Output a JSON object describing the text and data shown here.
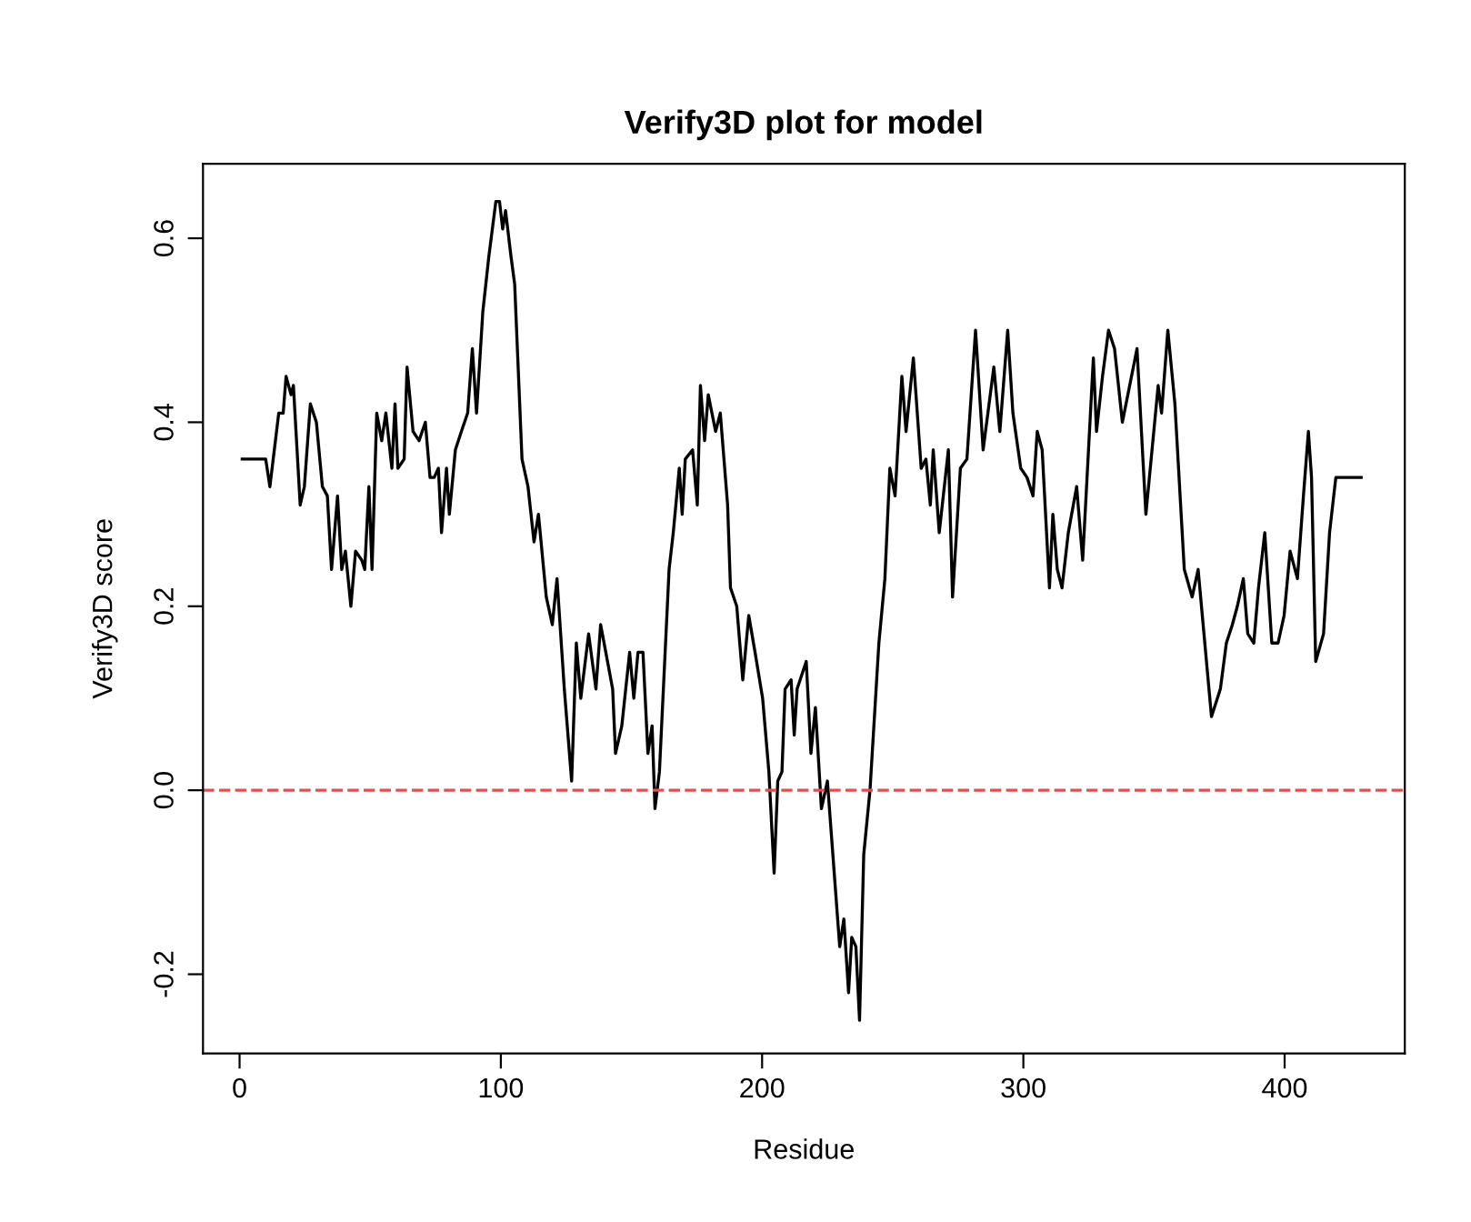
{
  "chart_data": {
    "type": "line",
    "title": "Verify3D plot for model",
    "xlabel": "Residue",
    "ylabel": "Verify3D score",
    "xlim": [
      -14,
      446
    ],
    "xticks": [
      0,
      100,
      200,
      300,
      400
    ],
    "ylim": [
      -0.286,
      0.681
    ],
    "yticks": [
      -0.2,
      {
        "value": 0,
        "label": "0.0"
      },
      0.2,
      0.4,
      0.6
    ],
    "grid": false,
    "legend": false,
    "marker": "none",
    "line_style": "solid",
    "ref_lines": [
      {
        "axis": "y",
        "value": 0,
        "color": "#e05050",
        "line_style": "dashed"
      }
    ],
    "series": [
      {
        "color": "#000000",
        "x": [
          1,
          10,
          11.6,
          15,
          16.7,
          17.8,
          19.7,
          20.6,
          22,
          23.2,
          24.8,
          27.1,
          29.4,
          31.7,
          33.6,
          35.2,
          37.5,
          39.1,
          40.5,
          42.6,
          44.4,
          46.8,
          47.9,
          49.5,
          50.7,
          52.5,
          54.4,
          56,
          58.3,
          59.5,
          60.6,
          63,
          64.1,
          66.4,
          68.7,
          71.1,
          72.9,
          74.5,
          76.1,
          77.3,
          79.2,
          80.3,
          82.6,
          84.9,
          87.3,
          89.1,
          90.7,
          93.1,
          95.4,
          98.1,
          99.5,
          100.7,
          101.8,
          103.9,
          105.3,
          108.1,
          110.4,
          112.7,
          114.4,
          117.4,
          119.7,
          121.5,
          124.3,
          127.1,
          128.9,
          130.6,
          133.6,
          136.4,
          138.2,
          142.8,
          143.9,
          146.3,
          149.3,
          150.9,
          152.5,
          154.4,
          156.3,
          157.9,
          159,
          160.7,
          164.4,
          166,
          168.3,
          169.4,
          170.6,
          173.4,
          175.2,
          176.4,
          178,
          179.4,
          182.2,
          184,
          186.8,
          187.9,
          190.3,
          192.6,
          194.9,
          197.3,
          200.2,
          202.6,
          204.6,
          206,
          207.6,
          208.8,
          211.1,
          212.3,
          213.4,
          216.9,
          218.7,
          220.4,
          222.7,
          225,
          229.7,
          231.3,
          233.1,
          234.3,
          235.9,
          237.3,
          238.9,
          241.3,
          244.7,
          247,
          248.9,
          250.9,
          253.5,
          255.1,
          257.9,
          260.9,
          262.7,
          264.4,
          265.5,
          267.8,
          271.3,
          272.9,
          275.9,
          278.4,
          281.7,
          284.6,
          288.7,
          291,
          294,
          296,
          299,
          301.4,
          303.7,
          305.3,
          307.2,
          310,
          311.3,
          313,
          314.8,
          317.2,
          320.4,
          322.7,
          326.8,
          328,
          330.3,
          332.6,
          334.9,
          337.9,
          340.7,
          343.5,
          346.9,
          351.6,
          352.9,
          355.3,
          358,
          361.6,
          364.6,
          366.9,
          372,
          375.4,
          377.7,
          380,
          381.9,
          384.2,
          385.9,
          388.2,
          390,
          392.4,
          395.1,
          397.5,
          399.8,
          402.1,
          404.9,
          407.2,
          409.1,
          410.3,
          411.9,
          414.9,
          417.2,
          419.6,
          429.3
        ],
        "values": [
          0.36,
          0.36,
          0.33,
          0.41,
          0.41,
          0.45,
          0.43,
          0.44,
          0.37,
          0.31,
          0.33,
          0.42,
          0.4,
          0.33,
          0.32,
          0.24,
          0.32,
          0.24,
          0.26,
          0.2,
          0.26,
          0.25,
          0.24,
          0.33,
          0.24,
          0.41,
          0.38,
          0.41,
          0.35,
          0.42,
          0.35,
          0.36,
          0.46,
          0.39,
          0.38,
          0.4,
          0.34,
          0.34,
          0.35,
          0.28,
          0.35,
          0.3,
          0.37,
          0.39,
          0.41,
          0.48,
          0.41,
          0.52,
          0.58,
          0.64,
          0.64,
          0.61,
          0.63,
          0.58,
          0.55,
          0.36,
          0.33,
          0.27,
          0.3,
          0.21,
          0.18,
          0.23,
          0.11,
          0.01,
          0.16,
          0.1,
          0.17,
          0.11,
          0.18,
          0.11,
          0.04,
          0.07,
          0.15,
          0.1,
          0.15,
          0.15,
          0.04,
          0.07,
          -0.02,
          0.02,
          0.24,
          0.28,
          0.35,
          0.3,
          0.36,
          0.37,
          0.31,
          0.44,
          0.38,
          0.43,
          0.39,
          0.41,
          0.31,
          0.22,
          0.2,
          0.12,
          0.19,
          0.15,
          0.1,
          0.02,
          -0.09,
          0.01,
          0.02,
          0.11,
          0.12,
          0.06,
          0.11,
          0.14,
          0.04,
          0.09,
          -0.02,
          0.01,
          -0.17,
          -0.14,
          -0.22,
          -0.16,
          -0.17,
          -0.25,
          -0.07,
          0.0,
          0.16,
          0.23,
          0.35,
          0.32,
          0.45,
          0.39,
          0.47,
          0.35,
          0.36,
          0.31,
          0.37,
          0.28,
          0.37,
          0.21,
          0.35,
          0.36,
          0.5,
          0.37,
          0.46,
          0.39,
          0.5,
          0.41,
          0.35,
          0.34,
          0.32,
          0.39,
          0.37,
          0.22,
          0.3,
          0.24,
          0.22,
          0.28,
          0.33,
          0.25,
          0.47,
          0.39,
          0.45,
          0.5,
          0.48,
          0.4,
          0.44,
          0.48,
          0.3,
          0.44,
          0.41,
          0.5,
          0.42,
          0.24,
          0.21,
          0.24,
          0.08,
          0.11,
          0.16,
          0.18,
          0.2,
          0.23,
          0.17,
          0.16,
          0.22,
          0.28,
          0.16,
          0.16,
          0.19,
          0.26,
          0.23,
          0.32,
          0.39,
          0.34,
          0.14,
          0.17,
          0.28,
          0.34,
          0.34
        ]
      }
    ]
  }
}
